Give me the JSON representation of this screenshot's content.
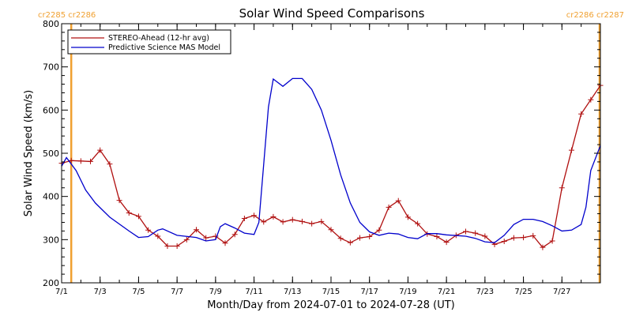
{
  "chart_data": {
    "type": "line",
    "title": "Solar Wind Speed Comparisons",
    "xlabel": "Month/Day from 2024-07-01 to 2024-07-28 (UT)",
    "ylabel": "Solar Wind Speed (km/s)",
    "xlim": [
      "2024-07-01",
      "2024-07-29"
    ],
    "ylim": [
      200,
      800
    ],
    "y_ticks": [
      "200",
      "300",
      "400",
      "500",
      "600",
      "700",
      "800"
    ],
    "x_ticks": [
      {
        "date": "2024-07-01",
        "label": "7/1"
      },
      {
        "date": "2024-07-03",
        "label": "7/3"
      },
      {
        "date": "2024-07-05",
        "label": "7/5"
      },
      {
        "date": "2024-07-07",
        "label": "7/7"
      },
      {
        "date": "2024-07-09",
        "label": "7/9"
      },
      {
        "date": "2024-07-11",
        "label": "7/11"
      },
      {
        "date": "2024-07-13",
        "label": "7/13"
      },
      {
        "date": "2024-07-15",
        "label": "7/15"
      },
      {
        "date": "2024-07-17",
        "label": "7/17"
      },
      {
        "date": "2024-07-19",
        "label": "7/19"
      },
      {
        "date": "2024-07-21",
        "label": "7/21"
      },
      {
        "date": "2024-07-23",
        "label": "7/23"
      },
      {
        "date": "2024-07-25",
        "label": "7/25"
      },
      {
        "date": "2024-07-27",
        "label": "7/27"
      }
    ],
    "carrington_markers": [
      {
        "date": "2024-07-01 12:00",
        "color": "#f0a030"
      },
      {
        "date": "2024-07-28 23:00",
        "color": "#f0a030"
      }
    ],
    "carrington_labels": {
      "left": "cr2285 cr2286",
      "right": "cr2286 cr2287"
    },
    "legend_position": "top-left",
    "series": [
      {
        "name": "STEREO-Ahead (12-hr avg)",
        "color": "#b01010",
        "marker": "plus",
        "points": [
          [
            "2024-07-01 00:00",
            477
          ],
          [
            "2024-07-01 12:00",
            483
          ],
          [
            "2024-07-02 00:00",
            482
          ],
          [
            "2024-07-02 12:00",
            481
          ],
          [
            "2024-07-03 00:00",
            507
          ],
          [
            "2024-07-03 12:00",
            475
          ],
          [
            "2024-07-04 00:00",
            391
          ],
          [
            "2024-07-04 12:00",
            362
          ],
          [
            "2024-07-05 00:00",
            354
          ],
          [
            "2024-07-05 12:00",
            322
          ],
          [
            "2024-07-06 00:00",
            308
          ],
          [
            "2024-07-06 12:00",
            285
          ],
          [
            "2024-07-07 00:00",
            285
          ],
          [
            "2024-07-07 12:00",
            300
          ],
          [
            "2024-07-08 00:00",
            323
          ],
          [
            "2024-07-08 12:00",
            304
          ],
          [
            "2024-07-09 00:00",
            308
          ],
          [
            "2024-07-09 12:00",
            292
          ],
          [
            "2024-07-10 00:00",
            312
          ],
          [
            "2024-07-10 12:00",
            349
          ],
          [
            "2024-07-11 00:00",
            356
          ],
          [
            "2024-07-11 12:00",
            341
          ],
          [
            "2024-07-12 00:00",
            353
          ],
          [
            "2024-07-12 12:00",
            341
          ],
          [
            "2024-07-13 00:00",
            346
          ],
          [
            "2024-07-13 12:00",
            342
          ],
          [
            "2024-07-14 00:00",
            337
          ],
          [
            "2024-07-14 12:00",
            342
          ],
          [
            "2024-07-15 00:00",
            323
          ],
          [
            "2024-07-15 12:00",
            303
          ],
          [
            "2024-07-16 00:00",
            293
          ],
          [
            "2024-07-16 12:00",
            304
          ],
          [
            "2024-07-17 00:00",
            307
          ],
          [
            "2024-07-17 12:00",
            322
          ],
          [
            "2024-07-18 00:00",
            375
          ],
          [
            "2024-07-18 12:00",
            390
          ],
          [
            "2024-07-19 00:00",
            352
          ],
          [
            "2024-07-19 12:00",
            337
          ],
          [
            "2024-07-20 00:00",
            313
          ],
          [
            "2024-07-20 12:00",
            307
          ],
          [
            "2024-07-21 00:00",
            294
          ],
          [
            "2024-07-21 12:00",
            310
          ],
          [
            "2024-07-22 00:00",
            319
          ],
          [
            "2024-07-22 12:00",
            315
          ],
          [
            "2024-07-23 00:00",
            308
          ],
          [
            "2024-07-23 12:00",
            289
          ],
          [
            "2024-07-24 00:00",
            296
          ],
          [
            "2024-07-24 12:00",
            304
          ],
          [
            "2024-07-25 00:00",
            305
          ],
          [
            "2024-07-25 12:00",
            309
          ],
          [
            "2024-07-26 00:00",
            282
          ],
          [
            "2024-07-26 12:00",
            297
          ],
          [
            "2024-07-27 00:00",
            420
          ],
          [
            "2024-07-27 12:00",
            507
          ],
          [
            "2024-07-28 00:00",
            591
          ],
          [
            "2024-07-28 12:00",
            624
          ],
          [
            "2024-07-29 00:00",
            657
          ]
        ]
      },
      {
        "name": "Predictive Science MAS Model",
        "color": "#0000cc",
        "marker": "none",
        "points": [
          [
            "2024-07-01 00:00",
            470
          ],
          [
            "2024-07-01 06:00",
            490
          ],
          [
            "2024-07-01 18:00",
            460
          ],
          [
            "2024-07-02 06:00",
            415
          ],
          [
            "2024-07-02 18:00",
            385
          ],
          [
            "2024-07-03 12:00",
            352
          ],
          [
            "2024-07-04 12:00",
            320
          ],
          [
            "2024-07-05 00:00",
            305
          ],
          [
            "2024-07-05 12:00",
            307
          ],
          [
            "2024-07-06 00:00",
            322
          ],
          [
            "2024-07-06 06:00",
            325
          ],
          [
            "2024-07-07 00:00",
            310
          ],
          [
            "2024-07-08 00:00",
            305
          ],
          [
            "2024-07-08 12:00",
            297
          ],
          [
            "2024-07-09 00:00",
            300
          ],
          [
            "2024-07-09 06:00",
            330
          ],
          [
            "2024-07-09 12:00",
            337
          ],
          [
            "2024-07-10 00:00",
            327
          ],
          [
            "2024-07-10 12:00",
            315
          ],
          [
            "2024-07-11 00:00",
            312
          ],
          [
            "2024-07-11 06:00",
            340
          ],
          [
            "2024-07-11 18:00",
            607
          ],
          [
            "2024-07-12 00:00",
            672
          ],
          [
            "2024-07-12 12:00",
            655
          ],
          [
            "2024-07-13 00:00",
            673
          ],
          [
            "2024-07-13 12:00",
            673
          ],
          [
            "2024-07-14 00:00",
            648
          ],
          [
            "2024-07-14 12:00",
            600
          ],
          [
            "2024-07-15 00:00",
            530
          ],
          [
            "2024-07-15 12:00",
            450
          ],
          [
            "2024-07-16 00:00",
            385
          ],
          [
            "2024-07-16 12:00",
            340
          ],
          [
            "2024-07-17 00:00",
            318
          ],
          [
            "2024-07-17 12:00",
            310
          ],
          [
            "2024-07-18 00:00",
            315
          ],
          [
            "2024-07-18 12:00",
            313
          ],
          [
            "2024-07-19 00:00",
            305
          ],
          [
            "2024-07-19 12:00",
            302
          ],
          [
            "2024-07-20 00:00",
            314
          ],
          [
            "2024-07-20 12:00",
            314
          ],
          [
            "2024-07-21 00:00",
            311
          ],
          [
            "2024-07-22 00:00",
            308
          ],
          [
            "2024-07-22 12:00",
            303
          ],
          [
            "2024-07-23 00:00",
            295
          ],
          [
            "2024-07-23 12:00",
            293
          ],
          [
            "2024-07-24 00:00",
            310
          ],
          [
            "2024-07-24 12:00",
            335
          ],
          [
            "2024-07-25 00:00",
            347
          ],
          [
            "2024-07-25 12:00",
            347
          ],
          [
            "2024-07-26 00:00",
            342
          ],
          [
            "2024-07-26 12:00",
            332
          ],
          [
            "2024-07-27 00:00",
            320
          ],
          [
            "2024-07-27 12:00",
            322
          ],
          [
            "2024-07-28 00:00",
            335
          ],
          [
            "2024-07-28 06:00",
            375
          ],
          [
            "2024-07-28 12:00",
            460
          ],
          [
            "2024-07-29 00:00",
            518
          ]
        ]
      }
    ]
  }
}
